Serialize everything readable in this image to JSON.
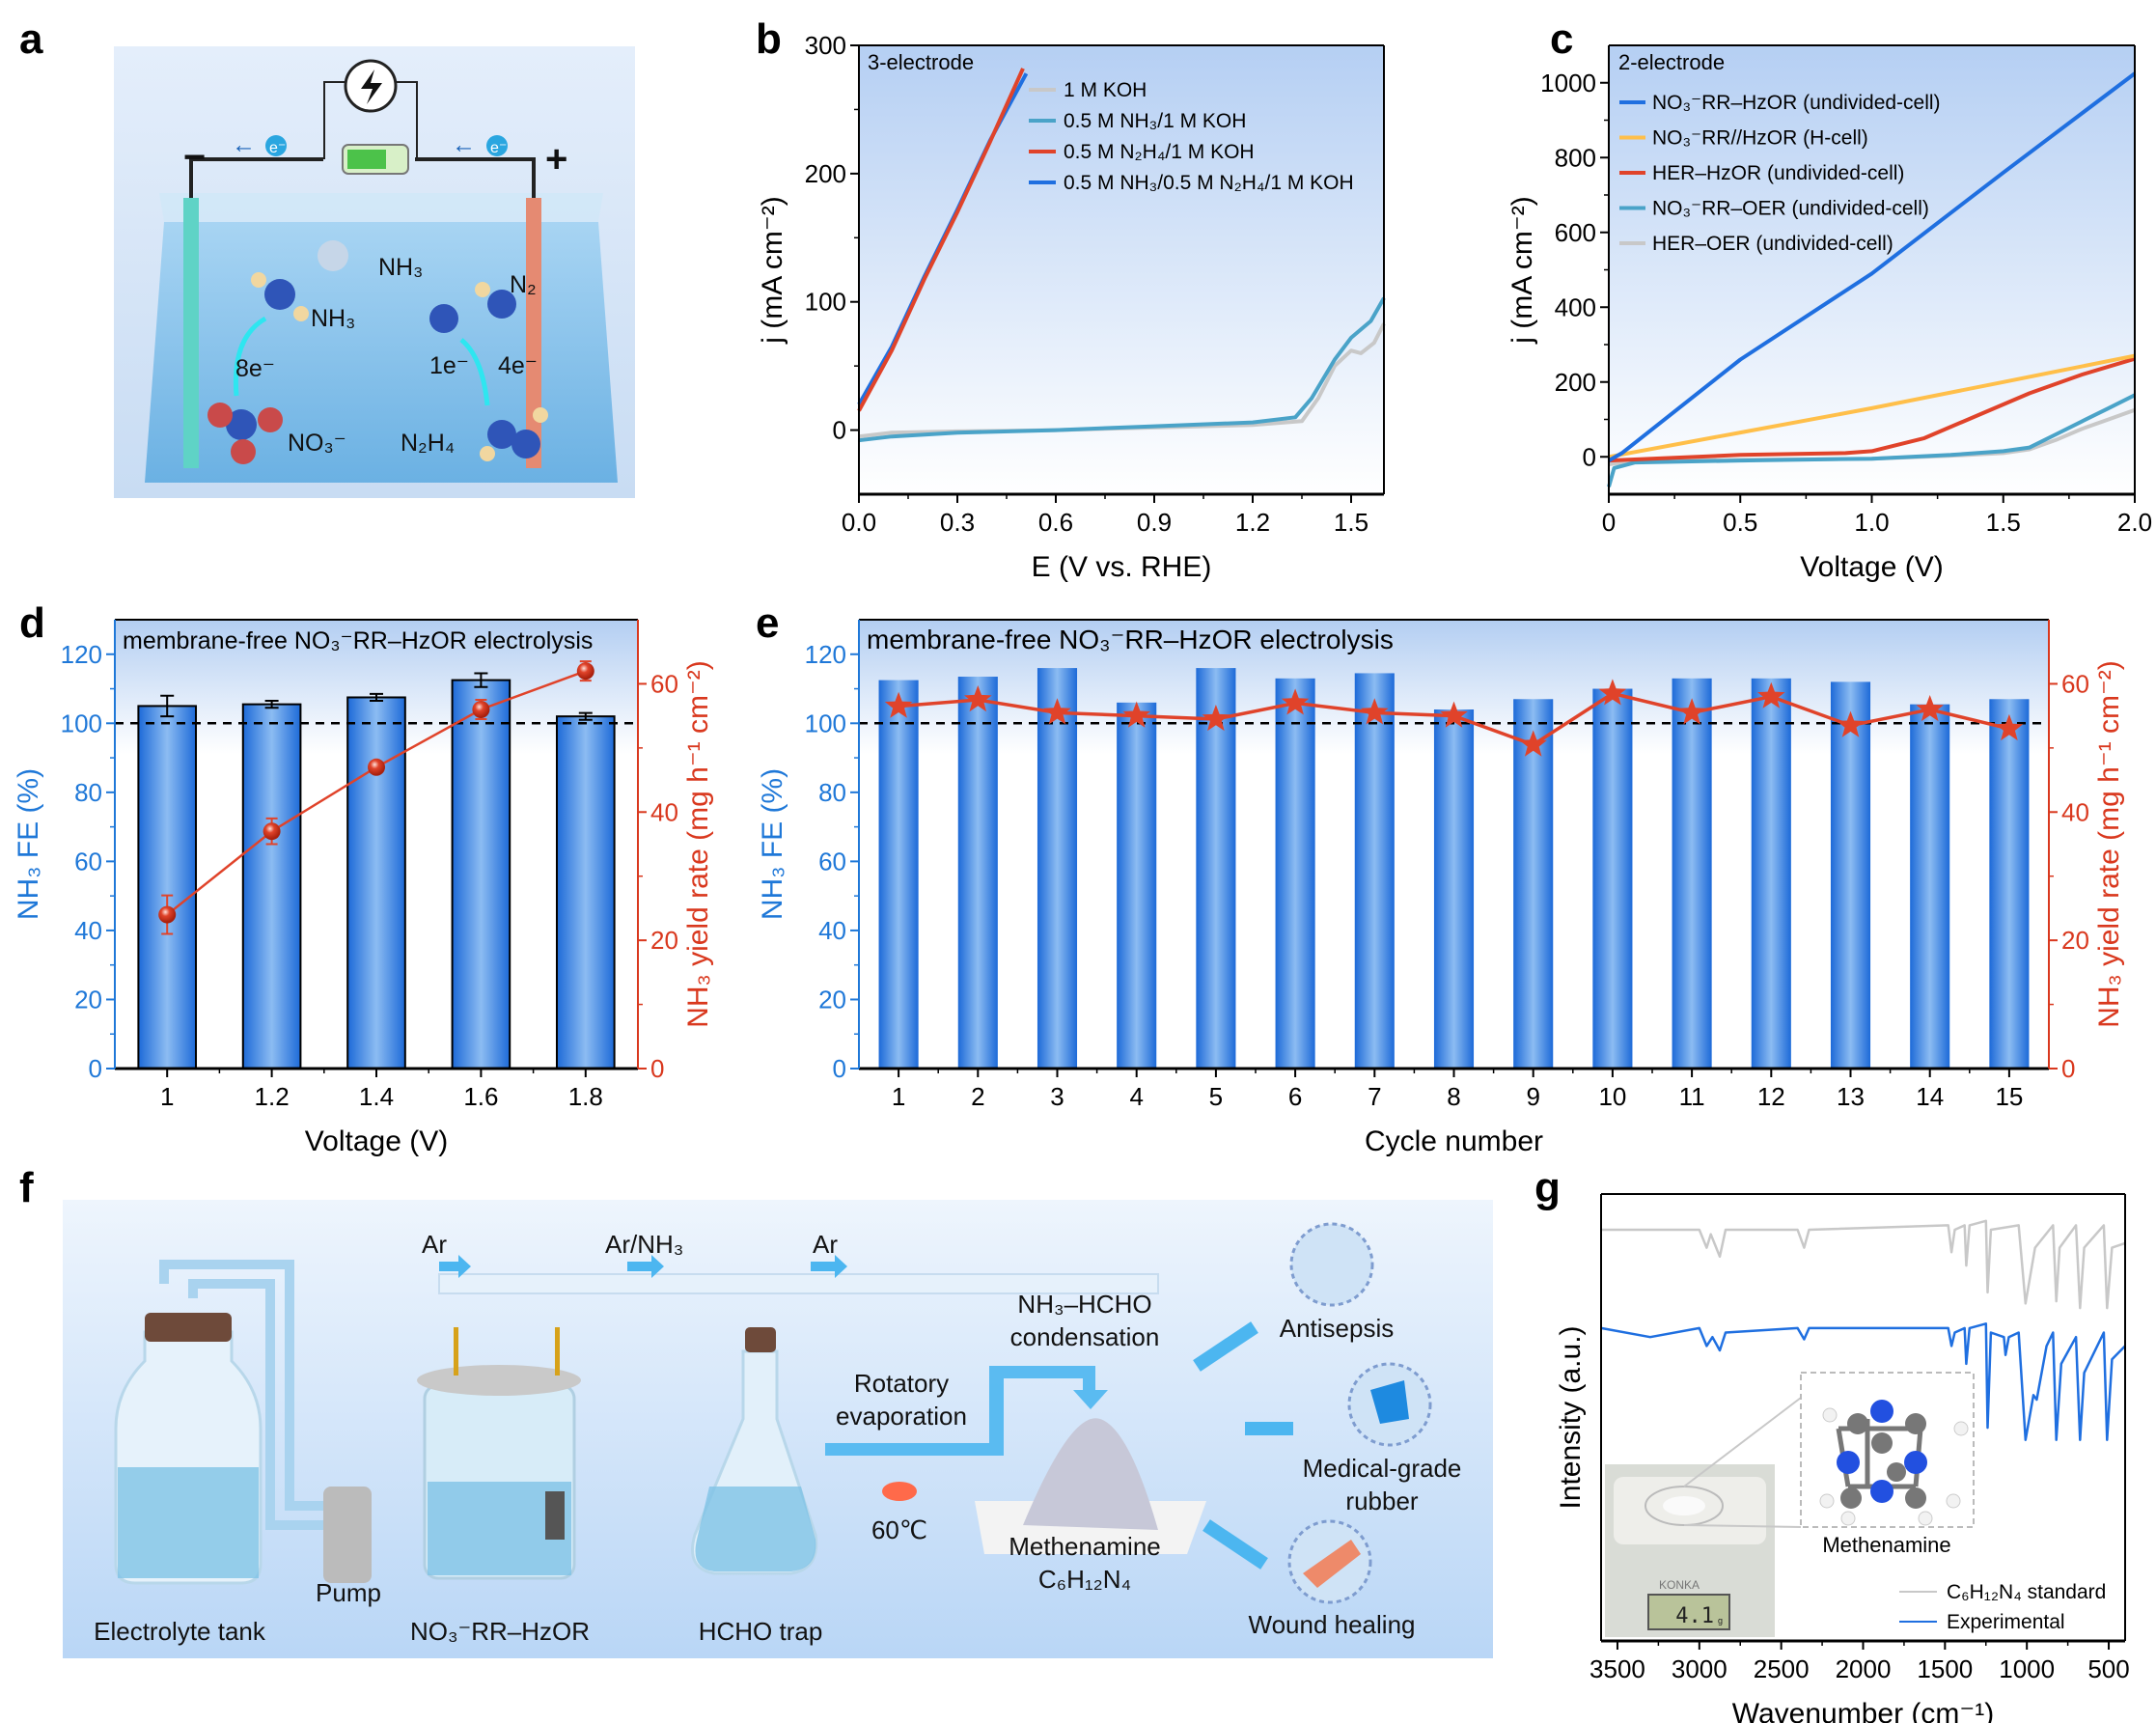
{
  "panel_labels": [
    "a",
    "b",
    "c",
    "d",
    "e",
    "f",
    "g"
  ],
  "panel_a": {
    "icon": "lightning-bolt-icon",
    "minus": "−",
    "plus": "+",
    "electron": "e⁻",
    "nh3_top": "NH₃",
    "nh3_left": "NH₃",
    "n2": "N₂",
    "e8": "8e⁻",
    "e1": "1e⁻",
    "e4": "4e⁻",
    "no3": "NO₃⁻",
    "n2h4": "N₂H₄"
  },
  "panel_f": {
    "gas_labels": [
      "Ar",
      "Ar/NH₃",
      "Ar"
    ],
    "condensation": [
      "NH₃–HCHO",
      "condensation"
    ],
    "evaporation": [
      "Rotatory",
      "evaporation"
    ],
    "temperature": "60℃",
    "product": [
      "Methenamine",
      "C₆H₁₂N₄"
    ],
    "applications": [
      {
        "lines": [
          "Antisepsis"
        ]
      },
      {
        "lines": [
          "Medical-grade",
          "rubber"
        ]
      },
      {
        "lines": [
          "Wound healing"
        ]
      }
    ],
    "components": [
      "Electrolyte tank",
      "Pump",
      "NO₃⁻RR–HzOR",
      "HCHO trap"
    ]
  },
  "colors": {
    "gray": "#c8c8c8",
    "teal": "#4aa3c8",
    "red": "#e0432a",
    "blue": "#1f6fe0",
    "orange": "#ffbf4a",
    "fe_axis": "#1f78d8",
    "yield_axis": "#d9381e"
  },
  "chart_data": [
    {
      "panel": "b",
      "type": "line",
      "annotation": "3-electrode",
      "xlabel": "E (V vs. RHE)",
      "ylabel": "j (mA cm⁻²)",
      "xlim": [
        0,
        1.6
      ],
      "ylim": [
        -50,
        300
      ],
      "x_ticks": [
        "0.0",
        "0.3",
        "0.6",
        "0.9",
        "1.2",
        "1.5"
      ],
      "x_tick_values": [
        0,
        0.3,
        0.6,
        0.9,
        1.2,
        1.5
      ],
      "y_ticks": [
        "0",
        "100",
        "200",
        "300"
      ],
      "y_tick_values": [
        0,
        100,
        200,
        300
      ],
      "legend": "top-left",
      "grid": false,
      "series": [
        {
          "name": "1 M KOH",
          "color": "#c8c8c8",
          "points": [
            [
              0,
              -5
            ],
            [
              0.1,
              -2
            ],
            [
              0.3,
              -1
            ],
            [
              0.6,
              0
            ],
            [
              0.9,
              2
            ],
            [
              1.2,
              4
            ],
            [
              1.35,
              7
            ],
            [
              1.4,
              25
            ],
            [
              1.45,
              50
            ],
            [
              1.5,
              62
            ],
            [
              1.53,
              60
            ],
            [
              1.57,
              68
            ],
            [
              1.6,
              83
            ]
          ]
        },
        {
          "name": "0.5 M NH₃/1 M KOH",
          "color": "#4aa3c8",
          "points": [
            [
              0,
              -8
            ],
            [
              0.1,
              -5
            ],
            [
              0.3,
              -2
            ],
            [
              0.6,
              0
            ],
            [
              0.9,
              3
            ],
            [
              1.2,
              6
            ],
            [
              1.33,
              10
            ],
            [
              1.38,
              25
            ],
            [
              1.45,
              55
            ],
            [
              1.5,
              72
            ],
            [
              1.56,
              85
            ],
            [
              1.6,
              103
            ]
          ]
        },
        {
          "name": "0.5 M N₂H₄/1 M KOH",
          "color": "#e0432a",
          "points": [
            [
              0,
              15
            ],
            [
              0.1,
              62
            ],
            [
              0.2,
              118
            ],
            [
              0.3,
              170
            ],
            [
              0.4,
              225
            ],
            [
              0.5,
              282
            ]
          ]
        },
        {
          "name": "0.5 M NH₃/0.5 M N₂H₄/1 M KOH",
          "color": "#1f6fe0",
          "points": [
            [
              0,
              20
            ],
            [
              0.1,
              65
            ],
            [
              0.2,
              120
            ],
            [
              0.3,
              172
            ],
            [
              0.4,
              226
            ],
            [
              0.51,
              278
            ]
          ]
        }
      ]
    },
    {
      "panel": "c",
      "type": "line",
      "annotation": "2-electrode",
      "xlabel": "Voltage (V)",
      "ylabel": "j (mA cm⁻²)",
      "xlim": [
        0,
        2.0
      ],
      "ylim": [
        -100,
        1100
      ],
      "x_ticks": [
        "0",
        "0.5",
        "1.0",
        "1.5",
        "2.0"
      ],
      "x_tick_values": [
        0,
        0.5,
        1.0,
        1.5,
        2.0
      ],
      "y_ticks": [
        "0",
        "200",
        "400",
        "600",
        "800",
        "1000"
      ],
      "y_tick_values": [
        0,
        200,
        400,
        600,
        800,
        1000
      ],
      "legend": "top-left",
      "grid": false,
      "series": [
        {
          "name": "NO₃⁻RR–HzOR (undivided-cell)",
          "color": "#1f6fe0",
          "points": [
            [
              0,
              -10
            ],
            [
              0.05,
              10
            ],
            [
              0.5,
              260
            ],
            [
              1.0,
              490
            ],
            [
              1.5,
              760
            ],
            [
              2.0,
              1025
            ]
          ]
        },
        {
          "name": "NO₃⁻RR//HzOR (H-cell)",
          "color": "#ffbf4a",
          "points": [
            [
              0,
              0
            ],
            [
              0.5,
              65
            ],
            [
              1.0,
              130
            ],
            [
              1.5,
              200
            ],
            [
              2.0,
              270
            ]
          ]
        },
        {
          "name": "HER–HzOR (undivided-cell)",
          "color": "#e0432a",
          "points": [
            [
              0,
              -10
            ],
            [
              0.5,
              5
            ],
            [
              0.9,
              10
            ],
            [
              1.0,
              15
            ],
            [
              1.2,
              50
            ],
            [
              1.4,
              110
            ],
            [
              1.6,
              170
            ],
            [
              1.8,
              220
            ],
            [
              2.0,
              262
            ]
          ]
        },
        {
          "name": "NO₃⁻RR–OER (undivided-cell)",
          "color": "#4aa3c8",
          "points": [
            [
              0,
              -80
            ],
            [
              0.02,
              -30
            ],
            [
              0.1,
              -15
            ],
            [
              0.5,
              -10
            ],
            [
              1.0,
              -5
            ],
            [
              1.3,
              5
            ],
            [
              1.5,
              15
            ],
            [
              1.6,
              25
            ],
            [
              1.7,
              60
            ],
            [
              1.8,
              95
            ],
            [
              1.9,
              130
            ],
            [
              2.0,
              165
            ]
          ]
        },
        {
          "name": "HER–OER (undivided-cell)",
          "color": "#c8c8c8",
          "points": [
            [
              0,
              -20
            ],
            [
              0.1,
              -12
            ],
            [
              0.5,
              -8
            ],
            [
              1.0,
              -5
            ],
            [
              1.3,
              3
            ],
            [
              1.5,
              10
            ],
            [
              1.6,
              20
            ],
            [
              1.7,
              45
            ],
            [
              1.8,
              75
            ],
            [
              1.9,
              100
            ],
            [
              2.0,
              125
            ]
          ]
        }
      ]
    },
    {
      "panel": "d",
      "type": "bar+line",
      "annotation": "membrane-free NO₃⁻RR–HzOR electrolysis",
      "xlabel": "Voltage (V)",
      "ylabel": "NH₃ FE (%)",
      "y2label": "NH₃ yield rate (mg h⁻¹ cm⁻²)",
      "categories": [
        "1",
        "1.2",
        "1.4",
        "1.6",
        "1.8"
      ],
      "xlim": [
        0.9,
        1.9
      ],
      "ylim": [
        0,
        130
      ],
      "y2lim": [
        0,
        70
      ],
      "y_ticks": [
        "0",
        "20",
        "40",
        "60",
        "80",
        "100",
        "120"
      ],
      "y_tick_values": [
        0,
        20,
        40,
        60,
        80,
        100,
        120
      ],
      "y2_ticks": [
        "0",
        "20",
        "40",
        "60"
      ],
      "y2_tick_values": [
        0,
        20,
        40,
        60
      ],
      "reference_line": 100,
      "bar_width": 0.11,
      "bars": {
        "values": [
          105,
          105.5,
          107.5,
          112.5,
          102
        ],
        "errors": [
          3,
          1,
          1,
          2,
          1
        ]
      },
      "line": {
        "values": [
          24,
          37,
          47,
          56,
          62
        ],
        "errors": [
          3,
          2,
          0.7,
          1.5,
          1.5
        ],
        "marker": "circle"
      }
    },
    {
      "panel": "e",
      "type": "bar+line",
      "annotation": "membrane-free NO₃⁻RR–HzOR electrolysis",
      "xlabel": "Cycle number",
      "ylabel": "NH₃ FE (%)",
      "y2label": "NH₃ yield rate (mg h⁻¹ cm⁻²)",
      "categories": [
        "1",
        "2",
        "3",
        "4",
        "5",
        "6",
        "7",
        "8",
        "9",
        "10",
        "11",
        "12",
        "13",
        "14",
        "15"
      ],
      "xlim": [
        0.5,
        15.5
      ],
      "ylim": [
        0,
        130
      ],
      "y2lim": [
        0,
        70
      ],
      "y_ticks": [
        "0",
        "20",
        "40",
        "60",
        "80",
        "100",
        "120"
      ],
      "y_tick_values": [
        0,
        20,
        40,
        60,
        80,
        100,
        120
      ],
      "y2_ticks": [
        "0",
        "20",
        "40",
        "60"
      ],
      "y2_tick_values": [
        0,
        20,
        40,
        60
      ],
      "reference_line": 100,
      "bar_width": 0.5,
      "bars": {
        "values": [
          112.5,
          113.5,
          116,
          106,
          116,
          113,
          114.5,
          104,
          107,
          110,
          113,
          113,
          112,
          105.5,
          107
        ]
      },
      "line": {
        "values": [
          56.5,
          57.5,
          55.5,
          55,
          54.5,
          57,
          55.5,
          55,
          50.5,
          58.5,
          55.5,
          58,
          53.5,
          56,
          53
        ],
        "marker": "star"
      }
    },
    {
      "panel": "g",
      "type": "line",
      "xlabel": "Wavenumber (cm⁻¹)",
      "ylabel": "Intensity (a.u.)",
      "xlim": [
        3600,
        400
      ],
      "ylim": [
        0,
        1
      ],
      "x_ticks": [
        "3500",
        "3000",
        "2500",
        "2000",
        "1500",
        "1000",
        "500"
      ],
      "x_tick_values": [
        3500,
        3000,
        2500,
        2000,
        1500,
        1000,
        500
      ],
      "legend": "bottom-right",
      "series": [
        {
          "name": "C₆H₁₂N₄ standard",
          "color": "#c8c8c8",
          "points": [
            [
              3600,
              0.92
            ],
            [
              3000,
              0.92
            ],
            [
              2955,
              0.88
            ],
            [
              2930,
              0.91
            ],
            [
              2875,
              0.86
            ],
            [
              2840,
              0.92
            ],
            [
              2400,
              0.92
            ],
            [
              2360,
              0.88
            ],
            [
              2330,
              0.92
            ],
            [
              1480,
              0.93
            ],
            [
              1460,
              0.87
            ],
            [
              1440,
              0.92
            ],
            [
              1380,
              0.93
            ],
            [
              1370,
              0.84
            ],
            [
              1350,
              0.93
            ],
            [
              1250,
              0.94
            ],
            [
              1240,
              0.78
            ],
            [
              1220,
              0.92
            ],
            [
              1050,
              0.93
            ],
            [
              1008,
              0.755
            ],
            [
              950,
              0.88
            ],
            [
              840,
              0.93
            ],
            [
              820,
              0.76
            ],
            [
              800,
              0.88
            ],
            [
              700,
              0.93
            ],
            [
              675,
              0.745
            ],
            [
              650,
              0.88
            ],
            [
              530,
              0.93
            ],
            [
              510,
              0.745
            ],
            [
              480,
              0.88
            ],
            [
              400,
              0.89
            ]
          ]
        },
        {
          "name": "Experimental",
          "color": "#1f6fe0",
          "points": [
            [
              3600,
              0.7
            ],
            [
              3300,
              0.68
            ],
            [
              3000,
              0.7
            ],
            [
              2955,
              0.66
            ],
            [
              2920,
              0.68
            ],
            [
              2875,
              0.65
            ],
            [
              2840,
              0.69
            ],
            [
              2400,
              0.7
            ],
            [
              2360,
              0.675
            ],
            [
              2330,
              0.7
            ],
            [
              1480,
              0.7
            ],
            [
              1460,
              0.66
            ],
            [
              1440,
              0.69
            ],
            [
              1380,
              0.7
            ],
            [
              1370,
              0.62
            ],
            [
              1350,
              0.7
            ],
            [
              1250,
              0.71
            ],
            [
              1240,
              0.477
            ],
            [
              1220,
              0.69
            ],
            [
              1140,
              0.68
            ],
            [
              1130,
              0.64
            ],
            [
              1110,
              0.68
            ],
            [
              1050,
              0.69
            ],
            [
              1008,
              0.45
            ],
            [
              960,
              0.55
            ],
            [
              940,
              0.54
            ],
            [
              880,
              0.66
            ],
            [
              840,
              0.69
            ],
            [
              820,
              0.45
            ],
            [
              790,
              0.62
            ],
            [
              700,
              0.68
            ],
            [
              675,
              0.45
            ],
            [
              650,
              0.6
            ],
            [
              530,
              0.69
            ],
            [
              510,
              0.45
            ],
            [
              480,
              0.63
            ],
            [
              400,
              0.66
            ]
          ]
        }
      ],
      "inset": {
        "molecule_label": "Methenamine",
        "scale_brand": "KONKA",
        "scale_reading": "4.1",
        "scale_unit": "g"
      }
    }
  ]
}
